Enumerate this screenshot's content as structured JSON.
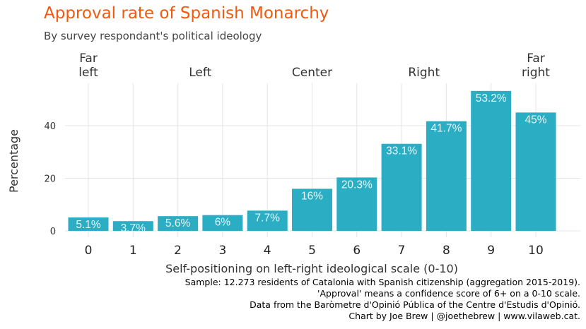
{
  "title": "Approval rate of Spanish Monarchy",
  "subtitle": "By survey respondant's political ideology",
  "caption": [
    "Sample: 12.273 residents of Catalonia with Spanish citizenship (aggregation 2015-2019).",
    "'Approval' means a confidence score of 6+ on a 0-10 scale.",
    "Data from the Baròmetre d'Opinió Pública of the Centre d'Estudis d'Opinió.",
    "Chart by Joe Brew | @joethebrew | www.vilaweb.cat."
  ],
  "colors": {
    "title": "#f05a0f",
    "bar": "#2baec4",
    "bar_label": "#e6f6f9",
    "grid": "#e5e5e5",
    "text": "#333333"
  },
  "chart_data": {
    "type": "bar",
    "categories": [
      "0",
      "1",
      "2",
      "3",
      "4",
      "5",
      "6",
      "7",
      "8",
      "9",
      "10"
    ],
    "values": [
      5.1,
      3.7,
      5.6,
      6,
      7.7,
      16,
      20.3,
      33.1,
      41.7,
      53.2,
      45
    ],
    "bar_labels": [
      "5.1%",
      "3.7%",
      "5.6%",
      "6%",
      "7.7%",
      "16%",
      "20.3%",
      "33.1%",
      "41.7%",
      "53.2%",
      "45%"
    ],
    "xlabel": "Self-positioning on left-right ideological scale (0-10)",
    "ylabel": "Percentage",
    "ylim": [
      0,
      53.2
    ],
    "yticks": [
      0,
      20,
      40
    ],
    "grid": true,
    "top_annotations": [
      {
        "x": 0,
        "lines": [
          "Far",
          "left"
        ]
      },
      {
        "x": 2.5,
        "lines": [
          "Left"
        ]
      },
      {
        "x": 5,
        "lines": [
          "Center"
        ]
      },
      {
        "x": 7.5,
        "lines": [
          "Right"
        ]
      },
      {
        "x": 10,
        "lines": [
          "Far",
          "right"
        ]
      }
    ]
  }
}
